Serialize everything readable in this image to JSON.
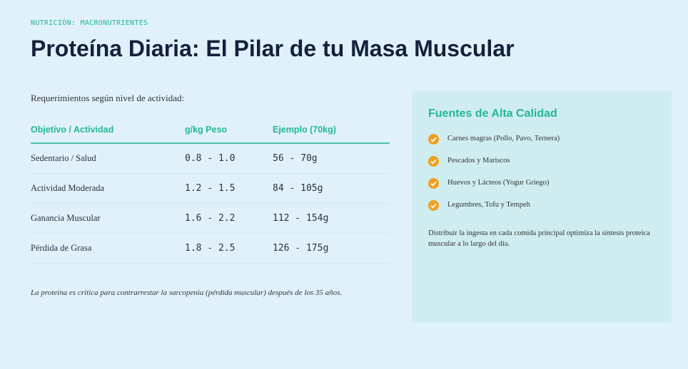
{
  "header": {
    "eyebrow": "NUTRICIÓN: MACRONUTRIENTES",
    "title": "Proteína Diaria: El Pilar de tu Masa Muscular"
  },
  "table": {
    "caption": "Requerimientos según nivel de actividad:",
    "columns": [
      "Objetivo / Actividad",
      "g/kg Peso",
      "Ejemplo (70kg)"
    ],
    "rows": [
      [
        "Sedentario / Salud",
        "0.8 - 1.0",
        "56 - 70g"
      ],
      [
        "Actividad Moderada",
        "1.2 - 1.5",
        "84 - 105g"
      ],
      [
        "Ganancia Muscular",
        "1.6 - 2.2",
        "112 - 154g"
      ],
      [
        "Pérdida de Grasa",
        "1.8 - 2.5",
        "126 - 175g"
      ]
    ],
    "note": "La proteína es crítica para contrarrestar la sarcopenia (pérdida muscular) después de los 35 años."
  },
  "sidebar": {
    "title": "Fuentes de Alta Calidad",
    "items": [
      "Carnes magras (Pollo, Pavo, Ternera)",
      "Pescados y Mariscos",
      "Huevos y Lácteos (Yogur Griego)",
      "Legumbres, Tofu y Tempeh"
    ],
    "text": "Distribuir la ingesta en cada comida principal optimiza la síntesis proteica muscular a lo largo del día."
  }
}
